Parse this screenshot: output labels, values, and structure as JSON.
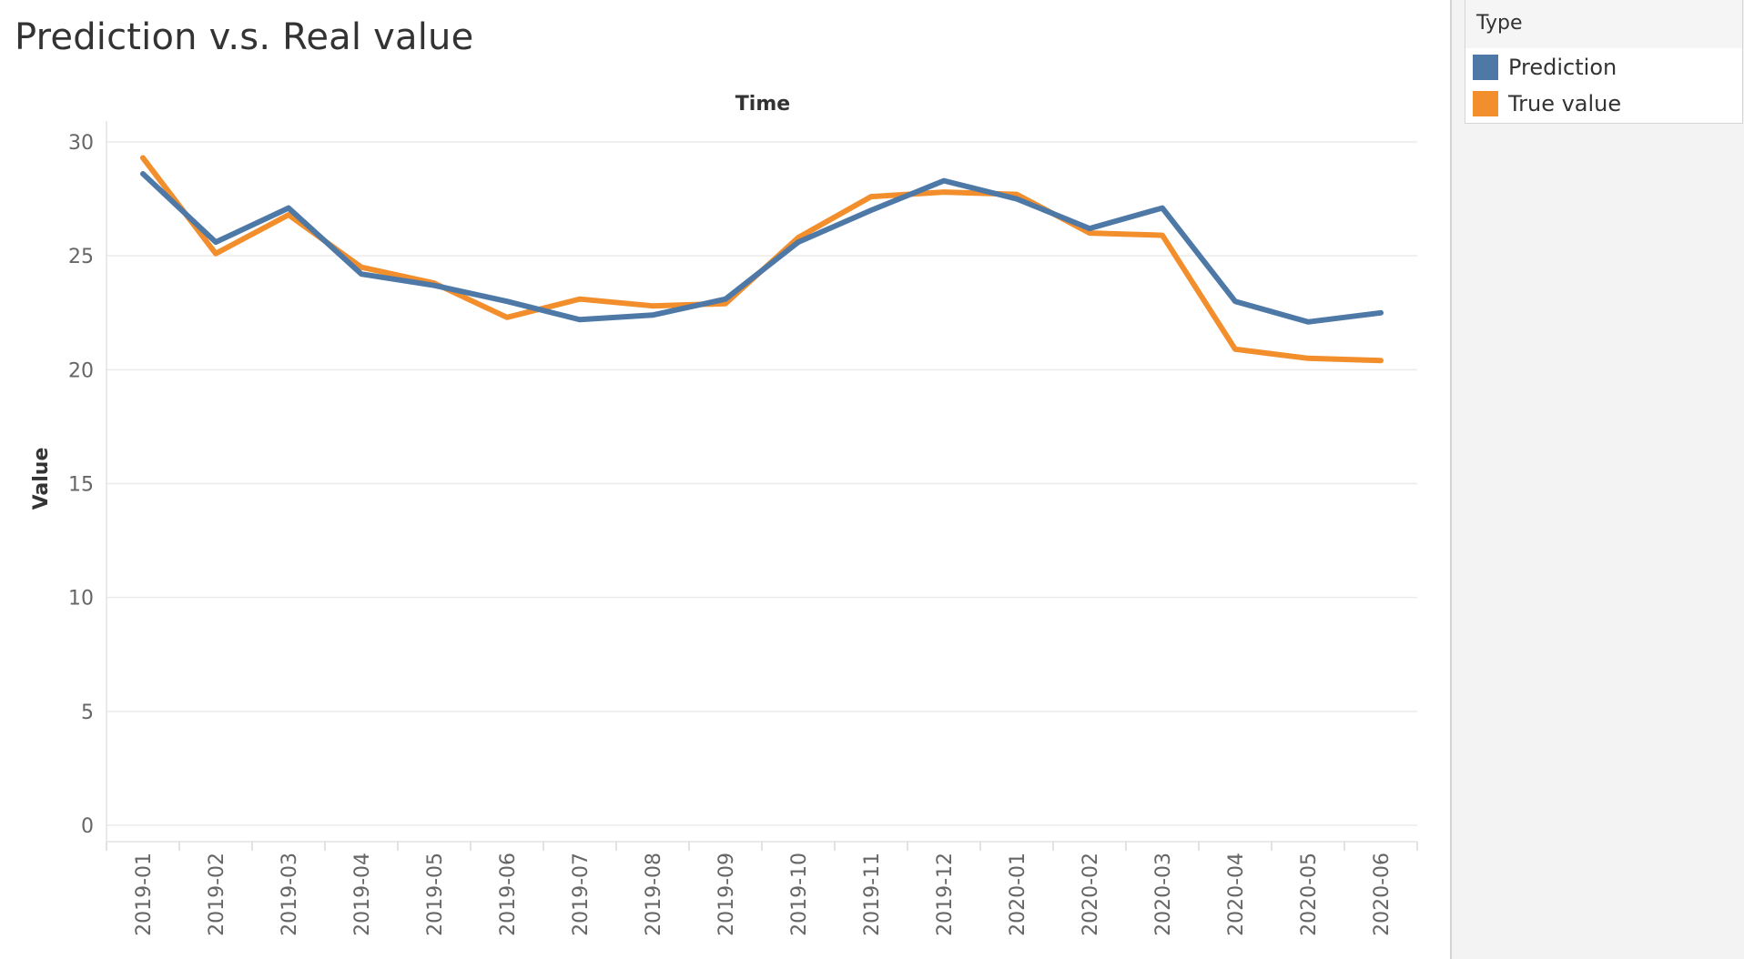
{
  "sheet": {
    "title": "Prediction v.s. Real value"
  },
  "legend": {
    "title": "Type",
    "items": [
      {
        "label": "Prediction",
        "color": "#4e79a7"
      },
      {
        "label": "True value",
        "color": "#f28e2b"
      }
    ]
  },
  "chart_data": {
    "type": "line",
    "title": "Prediction v.s. Real value",
    "xlabel": "Time",
    "ylabel": "Value",
    "ylim": [
      0,
      30
    ],
    "yticks": [
      0,
      5,
      10,
      15,
      20,
      25,
      30
    ],
    "grid": true,
    "legend_position": "top-right",
    "categories": [
      "2019-01",
      "2019-02",
      "2019-03",
      "2019-04",
      "2019-05",
      "2019-06",
      "2019-07",
      "2019-08",
      "2019-09",
      "2019-10",
      "2019-11",
      "2019-12",
      "2020-01",
      "2020-02",
      "2020-03",
      "2020-04",
      "2020-05",
      "2020-06"
    ],
    "series": [
      {
        "name": "Prediction",
        "color": "#4e79a7",
        "values": [
          28.6,
          25.6,
          27.1,
          24.2,
          23.7,
          23.0,
          22.2,
          22.4,
          23.1,
          25.6,
          27.0,
          28.3,
          27.5,
          26.2,
          27.1,
          23.0,
          22.1,
          22.5
        ]
      },
      {
        "name": "True value",
        "color": "#f28e2b",
        "values": [
          29.3,
          25.1,
          26.8,
          24.5,
          23.8,
          22.3,
          23.1,
          22.8,
          22.9,
          25.8,
          27.6,
          27.8,
          27.7,
          26.0,
          25.9,
          20.9,
          20.5,
          20.4
        ]
      }
    ]
  }
}
